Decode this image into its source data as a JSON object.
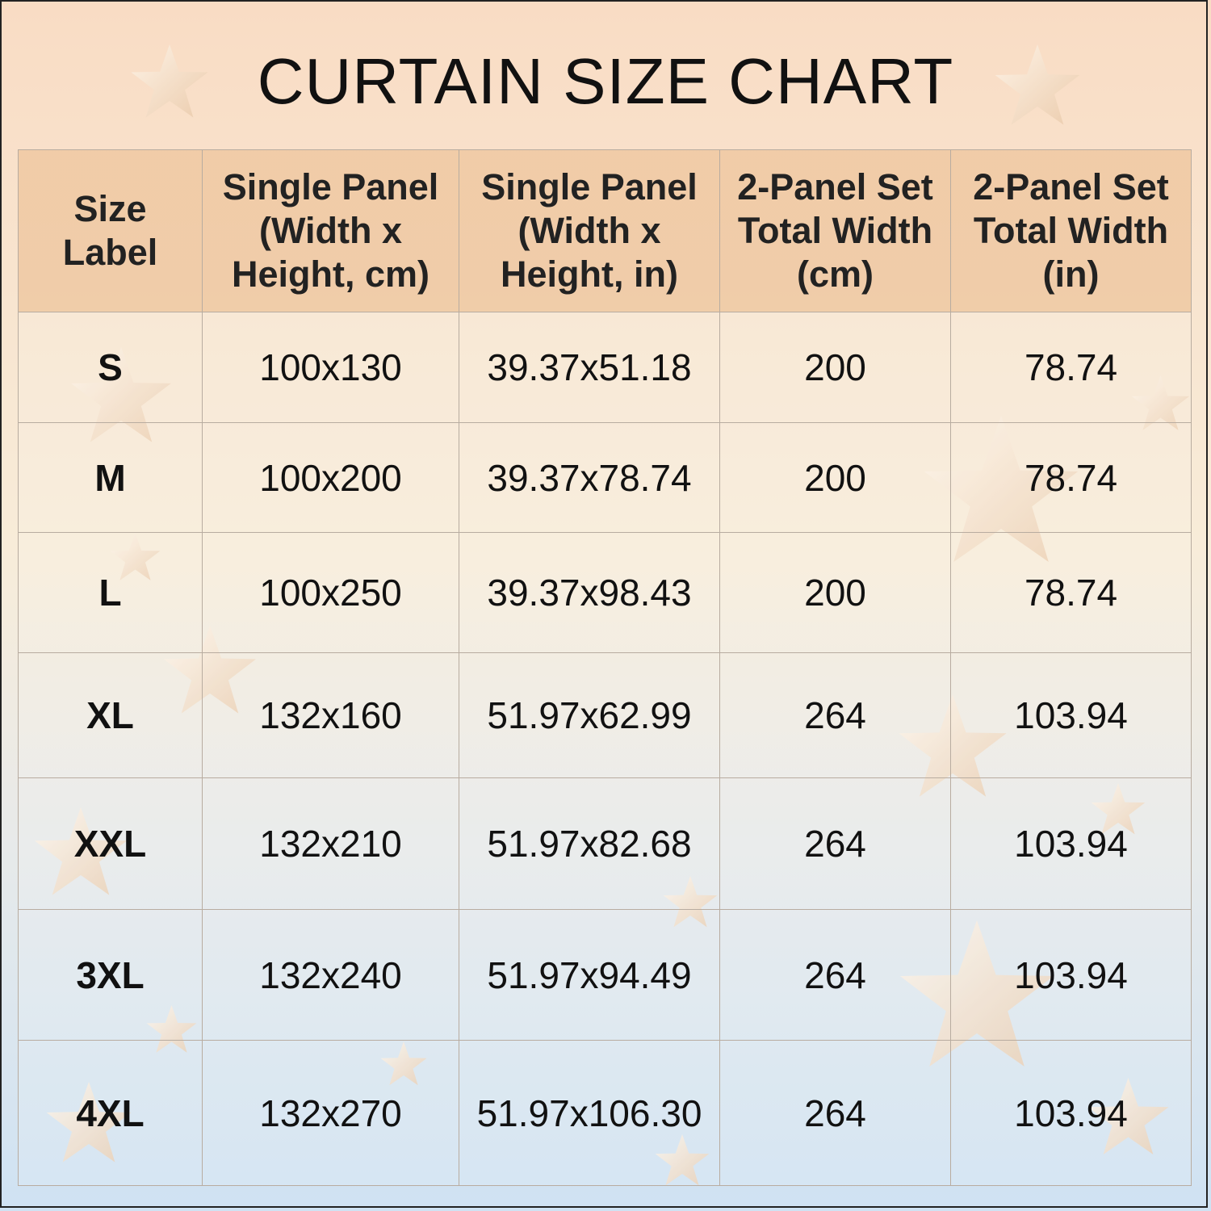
{
  "title": "CURTAIN SIZE CHART",
  "table": {
    "headers": [
      "Size Label",
      "Single Panel (Width x Height, cm)",
      "Single Panel (Width x Height, in)",
      "2-Panel Set Total Width (cm)",
      "2-Panel Set Total Width (in)"
    ],
    "rows": [
      [
        "S",
        "100x130",
        "39.37x51.18",
        "200",
        "78.74"
      ],
      [
        "M",
        "100x200",
        "39.37x78.74",
        "200",
        "78.74"
      ],
      [
        "L",
        "100x250",
        "39.37x98.43",
        "200",
        "78.74"
      ],
      [
        "XL",
        "132x160",
        "51.97x62.99",
        "264",
        "103.94"
      ],
      [
        "XXL",
        "132x210",
        "51.97x82.68",
        "264",
        "103.94"
      ],
      [
        "3XL",
        "132x240",
        "51.97x94.49",
        "264",
        "103.94"
      ],
      [
        "4XL",
        "132x270",
        "51.97x106.30",
        "264",
        "103.94"
      ]
    ]
  }
}
